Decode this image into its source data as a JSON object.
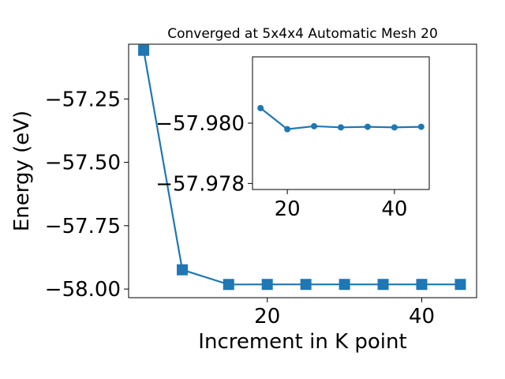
{
  "chart_data": [
    {
      "type": "line",
      "title": "Converged at 5x4x4 Automatic Mesh 20",
      "xlabel": "Increment in K point",
      "ylabel": "Energy (eV)",
      "x": [
        4,
        9,
        15,
        20,
        25,
        30,
        35,
        40,
        45
      ],
      "series": [
        {
          "values": [
            -57.058,
            -57.924,
            -57.9819,
            -57.9817,
            -57.9817,
            -57.9817,
            -57.9817,
            -57.9817,
            -57.9817
          ]
        }
      ],
      "xlim": [
        2.05,
        47.1
      ],
      "ylim": [
        -58.034,
        -57.034
      ],
      "xticks": [
        20,
        40
      ],
      "xtick_labels": [
        "20",
        "40"
      ],
      "yticks": [
        -57.25,
        -57.5,
        -57.75,
        -58.0
      ],
      "ytick_labels": [
        "−57.25",
        "−57.50",
        "−57.75",
        "−58.00"
      ],
      "marker": "square",
      "color": "#1f77b4",
      "grid": false
    },
    {
      "type": "line",
      "role": "inset",
      "x": [
        15,
        20,
        25,
        30,
        35,
        40,
        45
      ],
      "series": [
        {
          "values": [
            -57.9805,
            -57.9798,
            -57.9799,
            -57.97986,
            -57.97988,
            -57.97986,
            -57.97988
          ]
        }
      ],
      "xlim": [
        13.5,
        46.5
      ],
      "ylim": [
        -57.9822,
        -57.9778
      ],
      "y_axis_inverted": true,
      "xticks": [
        20,
        40
      ],
      "xtick_labels": [
        "20",
        "40"
      ],
      "yticks": [
        -57.98,
        -57.978
      ],
      "ytick_labels": [
        "−57.980",
        "−57.978"
      ],
      "marker": "circle",
      "color": "#1f77b4",
      "grid": false
    }
  ]
}
